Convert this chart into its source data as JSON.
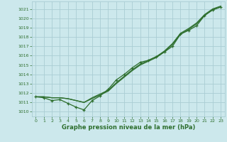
{
  "xlabel": "Graphe pression niveau de la mer (hPa)",
  "background_color": "#cce8ec",
  "grid_color": "#aacdd4",
  "line_color": "#2d6e2d",
  "x_values": [
    0,
    1,
    2,
    3,
    4,
    5,
    6,
    7,
    8,
    9,
    10,
    11,
    12,
    13,
    14,
    15,
    16,
    17,
    18,
    19,
    20,
    21,
    22,
    23
  ],
  "series_smooth1": [
    1011.6,
    1011.6,
    1011.5,
    1011.5,
    1011.4,
    1011.2,
    1011.0,
    1011.4,
    1011.8,
    1012.2,
    1013.0,
    1013.7,
    1014.4,
    1015.0,
    1015.4,
    1015.8,
    1016.4,
    1017.2,
    1018.3,
    1018.8,
    1019.4,
    1020.3,
    1020.9,
    1021.2
  ],
  "series_smooth2": [
    1011.6,
    1011.6,
    1011.5,
    1011.5,
    1011.4,
    1011.2,
    1011.0,
    1011.5,
    1011.9,
    1012.3,
    1013.1,
    1013.8,
    1014.5,
    1015.1,
    1015.5,
    1015.9,
    1016.5,
    1017.3,
    1018.4,
    1018.9,
    1019.5,
    1020.4,
    1021.0,
    1021.3
  ],
  "series_marked": [
    1011.6,
    1011.5,
    1011.2,
    1011.3,
    1010.9,
    1010.5,
    1010.2,
    1011.2,
    1011.7,
    1012.4,
    1013.4,
    1014.0,
    1014.7,
    1015.3,
    1015.5,
    1015.9,
    1016.4,
    1017.0,
    1018.3,
    1018.7,
    1019.2,
    1020.3,
    1020.9,
    1021.2
  ],
  "ylim": [
    1009.5,
    1021.8
  ],
  "yticks": [
    1010,
    1011,
    1012,
    1013,
    1014,
    1015,
    1016,
    1017,
    1018,
    1019,
    1020,
    1021
  ],
  "xlim": [
    -0.5,
    23.5
  ],
  "xticks": [
    0,
    1,
    2,
    3,
    4,
    5,
    6,
    7,
    8,
    9,
    10,
    11,
    12,
    13,
    14,
    15,
    16,
    17,
    18,
    19,
    20,
    21,
    22,
    23
  ]
}
